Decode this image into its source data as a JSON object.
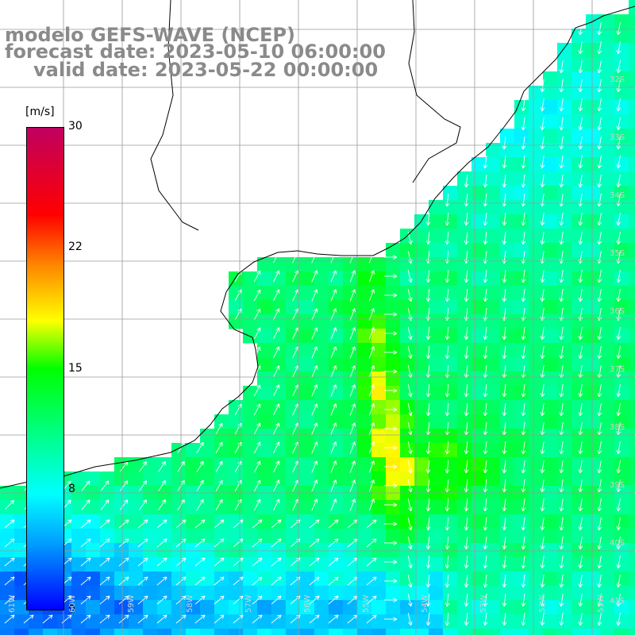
{
  "title": {
    "line1": "modelo GEFS-WAVE (NCEP)",
    "line2": "forecast date: 2023-05-10 06:00:00",
    "line3": "valid date: 2023-05-22 00:00:00"
  },
  "colorbar": {
    "unit": "[m/s]",
    "ticks": [
      "30",
      "22",
      "15",
      "8",
      "0"
    ],
    "colors": [
      "#0000ff",
      "#00a0ff",
      "#00ffff",
      "#00ff00",
      "#ffff00",
      "#ff8000",
      "#ff0000",
      "#c00060"
    ]
  },
  "map": {
    "lat_labels": [
      "32S",
      "33S",
      "34S",
      "35S",
      "36S",
      "37S",
      "38S",
      "39S",
      "40S",
      "41S"
    ],
    "lon_labels": [
      "61W",
      "60W",
      "59W",
      "58W",
      "57W",
      "56W",
      "55W",
      "54W",
      "53W",
      "52W",
      "51W"
    ],
    "ocean_color": "#ffffff",
    "land_color": "#ffffff",
    "grid_color": "#9a9a9a",
    "coast_color": "#000000",
    "arrow_color": "#ffffff"
  }
}
